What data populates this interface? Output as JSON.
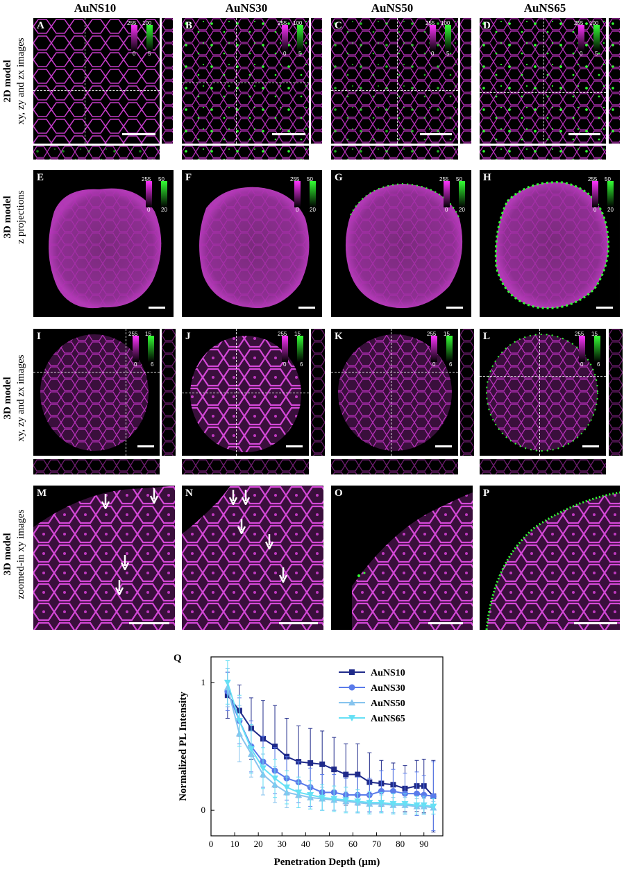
{
  "columns": [
    "AuNS10",
    "AuNS30",
    "AuNS50",
    "AuNS65"
  ],
  "rows": [
    {
      "bold": "2D model",
      "sub": "xy, zy and zx images"
    },
    {
      "bold": "3D model",
      "sub": "z projections"
    },
    {
      "bold": "3D model",
      "sub": "xy, zy and zx images"
    },
    {
      "bold": "3D model",
      "sub": "zoomed-in xy images"
    }
  ],
  "panel_letters": [
    "A",
    "B",
    "C",
    "D",
    "E",
    "F",
    "G",
    "H",
    "I",
    "J",
    "K",
    "L",
    "M",
    "N",
    "O",
    "P"
  ],
  "colorbars": [
    {
      "magenta_max": "255",
      "magenta_min": "0",
      "green_max": "100",
      "green_min": "5"
    },
    {
      "magenta_max": "255",
      "magenta_min": "0",
      "green_max": "50",
      "green_min": "20"
    },
    {
      "magenta_max": "255",
      "magenta_min": "0",
      "green_max": "15",
      "green_min": "6"
    }
  ],
  "colors": {
    "magenta": "#ff33ff",
    "green": "#33ff33",
    "background": "#000000"
  },
  "icons": [
    "arrow-down-icon"
  ],
  "chart_label": "Q",
  "chart_data": {
    "type": "line",
    "xlabel": "Penetration Depth (µm)",
    "ylabel": "Normalized PL Intensity",
    "xlim": [
      0,
      98
    ],
    "ylim": [
      -0.2,
      1.2
    ],
    "xticks": [
      "0",
      "10",
      "20",
      "30",
      "40",
      "50",
      "60",
      "70",
      "80",
      "90"
    ],
    "yticks": [
      "0",
      "1"
    ],
    "legend_position": "top-right",
    "x": [
      7,
      12,
      17,
      22,
      27,
      32,
      37,
      42,
      47,
      52,
      57,
      62,
      67,
      72,
      77,
      82,
      87,
      90,
      94
    ],
    "series": [
      {
        "name": "AuNS10",
        "color": "#1f2a8a",
        "marker": "square",
        "values": [
          0.9,
          0.78,
          0.64,
          0.56,
          0.5,
          0.42,
          0.38,
          0.37,
          0.36,
          0.32,
          0.28,
          0.28,
          0.22,
          0.21,
          0.2,
          0.17,
          0.19,
          0.19,
          0.11
        ],
        "err": [
          0.18,
          0.2,
          0.24,
          0.3,
          0.32,
          0.3,
          0.28,
          0.27,
          0.26,
          0.25,
          0.24,
          0.24,
          0.23,
          0.18,
          0.17,
          0.18,
          0.2,
          0.21,
          0.28
        ]
      },
      {
        "name": "AuNS30",
        "color": "#5a7bea",
        "marker": "circle",
        "values": [
          0.93,
          0.7,
          0.5,
          0.38,
          0.31,
          0.25,
          0.22,
          0.18,
          0.14,
          0.14,
          0.12,
          0.12,
          0.12,
          0.15,
          0.15,
          0.13,
          0.13,
          0.12,
          0.11
        ],
        "err": [
          0.15,
          0.18,
          0.2,
          0.2,
          0.18,
          0.17,
          0.16,
          0.15,
          0.14,
          0.14,
          0.13,
          0.14,
          0.13,
          0.16,
          0.17,
          0.16,
          0.17,
          0.15,
          0.27
        ]
      },
      {
        "name": "AuNS50",
        "color": "#86c4ee",
        "marker": "triangle-up",
        "values": [
          0.96,
          0.6,
          0.44,
          0.28,
          0.2,
          0.14,
          0.12,
          0.1,
          0.09,
          0.08,
          0.07,
          0.06,
          0.05,
          0.05,
          0.04,
          0.04,
          0.03,
          0.03,
          0.02
        ],
        "err": [
          0.15,
          0.22,
          0.18,
          0.16,
          0.14,
          0.12,
          0.1,
          0.09,
          0.09,
          0.08,
          0.08,
          0.07,
          0.07,
          0.07,
          0.06,
          0.06,
          0.06,
          0.06,
          0.05
        ]
      },
      {
        "name": "AuNS65",
        "color": "#66e0f5",
        "marker": "triangle-down",
        "values": [
          1.0,
          0.7,
          0.48,
          0.33,
          0.25,
          0.18,
          0.14,
          0.12,
          0.1,
          0.09,
          0.08,
          0.07,
          0.06,
          0.06,
          0.05,
          0.05,
          0.04,
          0.04,
          0.03
        ],
        "err": [
          0.17,
          0.2,
          0.19,
          0.16,
          0.15,
          0.13,
          0.12,
          0.11,
          0.1,
          0.1,
          0.1,
          0.09,
          0.09,
          0.08,
          0.08,
          0.08,
          0.07,
          0.07,
          0.06
        ]
      }
    ]
  }
}
